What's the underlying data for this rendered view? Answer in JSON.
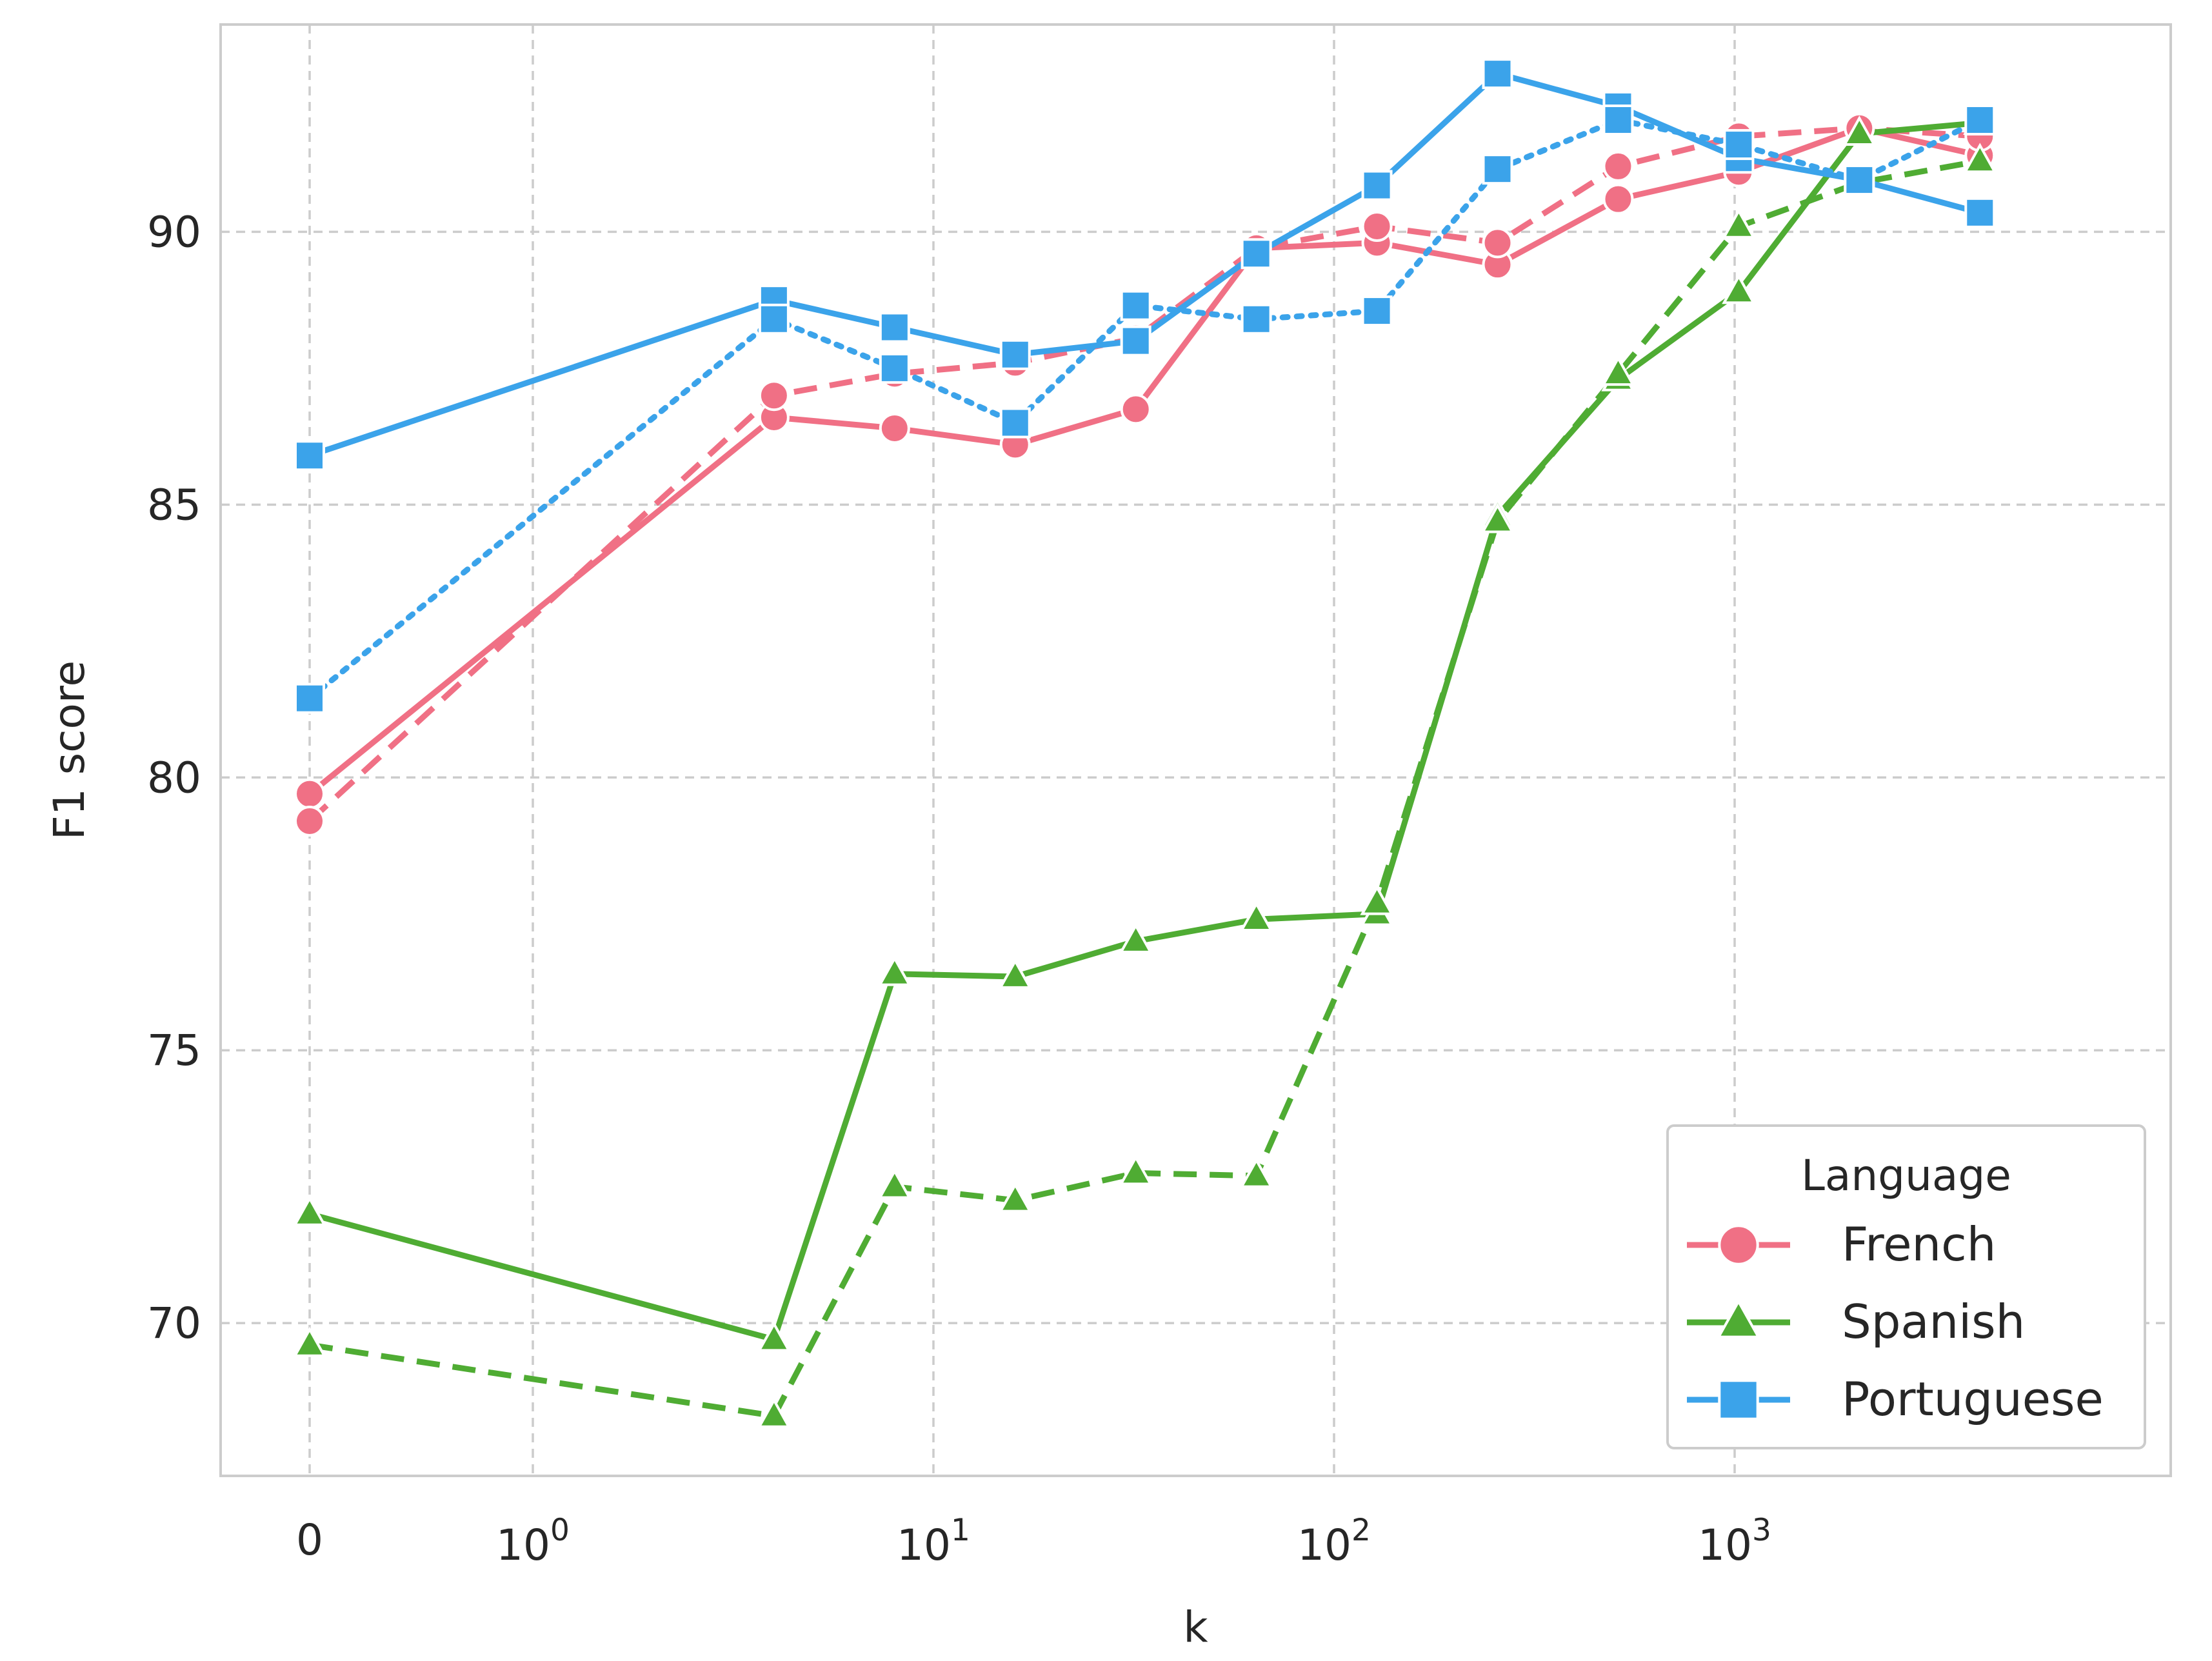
{
  "chart_data": {
    "type": "line",
    "title": "",
    "xlabel": "k",
    "ylabel": "F1 score",
    "x_scale": "symlog",
    "x_ticks": [
      {
        "value": 0,
        "base": "0",
        "exp": ""
      },
      {
        "value": 1,
        "base": "10",
        "exp": "0"
      },
      {
        "value": 10,
        "base": "10",
        "exp": "1"
      },
      {
        "value": 100,
        "base": "10",
        "exp": "2"
      },
      {
        "value": 1000,
        "base": "10",
        "exp": "3"
      }
    ],
    "y_ticks": [
      "70",
      "75",
      "80",
      "85",
      "90"
    ],
    "ylim": [
      67.2,
      93.8
    ],
    "grid": true,
    "legend": {
      "title": "Language",
      "placement": "lower-right",
      "entries": [
        "French",
        "Spanish",
        "Portuguese"
      ]
    },
    "colors": {
      "French": "#f07085",
      "Spanish": "#4fac33",
      "Portuguese": "#3ba3ea"
    },
    "series": [
      {
        "language": "French",
        "style": "solid",
        "marker": "circle",
        "points": [
          [
            0,
            79.7
          ],
          [
            4,
            86.6
          ],
          [
            8,
            86.4
          ],
          [
            16,
            86.1
          ],
          [
            32,
            86.75
          ],
          [
            64,
            89.7
          ],
          [
            128,
            89.8
          ],
          [
            256,
            89.4
          ],
          [
            512,
            90.6
          ],
          [
            1024,
            91.1
          ],
          [
            2048,
            91.9
          ],
          [
            4096,
            91.4
          ]
        ]
      },
      {
        "language": "French",
        "style": "dashed",
        "marker": "circle",
        "points": [
          [
            0,
            79.2
          ],
          [
            4,
            87.0
          ],
          [
            8,
            87.4
          ],
          [
            16,
            87.6
          ],
          [
            32,
            88.05
          ],
          [
            64,
            89.7
          ],
          [
            128,
            90.1
          ],
          [
            256,
            89.8
          ],
          [
            512,
            91.2
          ],
          [
            1024,
            91.75
          ],
          [
            2048,
            91.9
          ],
          [
            4096,
            91.75
          ]
        ]
      },
      {
        "language": "Spanish",
        "style": "solid",
        "marker": "triangle",
        "points": [
          [
            0,
            72.0
          ],
          [
            4,
            69.7
          ],
          [
            8,
            76.4
          ],
          [
            16,
            76.35
          ],
          [
            32,
            77.0
          ],
          [
            64,
            77.4
          ],
          [
            128,
            77.5
          ],
          [
            256,
            84.8
          ],
          [
            512,
            87.3
          ],
          [
            1024,
            88.9
          ],
          [
            2048,
            91.8
          ],
          [
            4096,
            92.0
          ]
        ]
      },
      {
        "language": "Spanish",
        "style": "dashed",
        "marker": "triangle",
        "points": [
          [
            0,
            69.6
          ],
          [
            4,
            68.3
          ],
          [
            8,
            72.5
          ],
          [
            16,
            72.25
          ],
          [
            32,
            72.75
          ],
          [
            64,
            72.7
          ],
          [
            128,
            77.7
          ],
          [
            256,
            84.7
          ],
          [
            512,
            87.4
          ],
          [
            1024,
            90.1
          ],
          [
            2048,
            90.9
          ],
          [
            4096,
            91.3
          ]
        ]
      },
      {
        "language": "Portuguese",
        "style": "solid",
        "marker": "square",
        "points": [
          [
            0,
            85.9
          ],
          [
            4,
            88.75
          ],
          [
            8,
            88.25
          ],
          [
            16,
            87.75
          ],
          [
            32,
            88.0
          ],
          [
            64,
            89.6
          ],
          [
            128,
            90.85
          ],
          [
            256,
            92.9
          ],
          [
            512,
            92.3
          ],
          [
            1024,
            91.35
          ],
          [
            2048,
            90.95
          ],
          [
            4096,
            90.35
          ]
        ]
      },
      {
        "language": "Portuguese",
        "style": "dotted",
        "marker": "square",
        "points": [
          [
            0,
            81.45
          ],
          [
            4,
            88.4
          ],
          [
            8,
            87.5
          ],
          [
            16,
            86.5
          ],
          [
            32,
            88.65
          ],
          [
            64,
            88.4
          ],
          [
            128,
            88.55
          ],
          [
            256,
            91.15
          ],
          [
            512,
            92.05
          ],
          [
            1024,
            91.6
          ],
          [
            2048,
            90.95
          ],
          [
            4096,
            92.05
          ]
        ]
      }
    ]
  }
}
